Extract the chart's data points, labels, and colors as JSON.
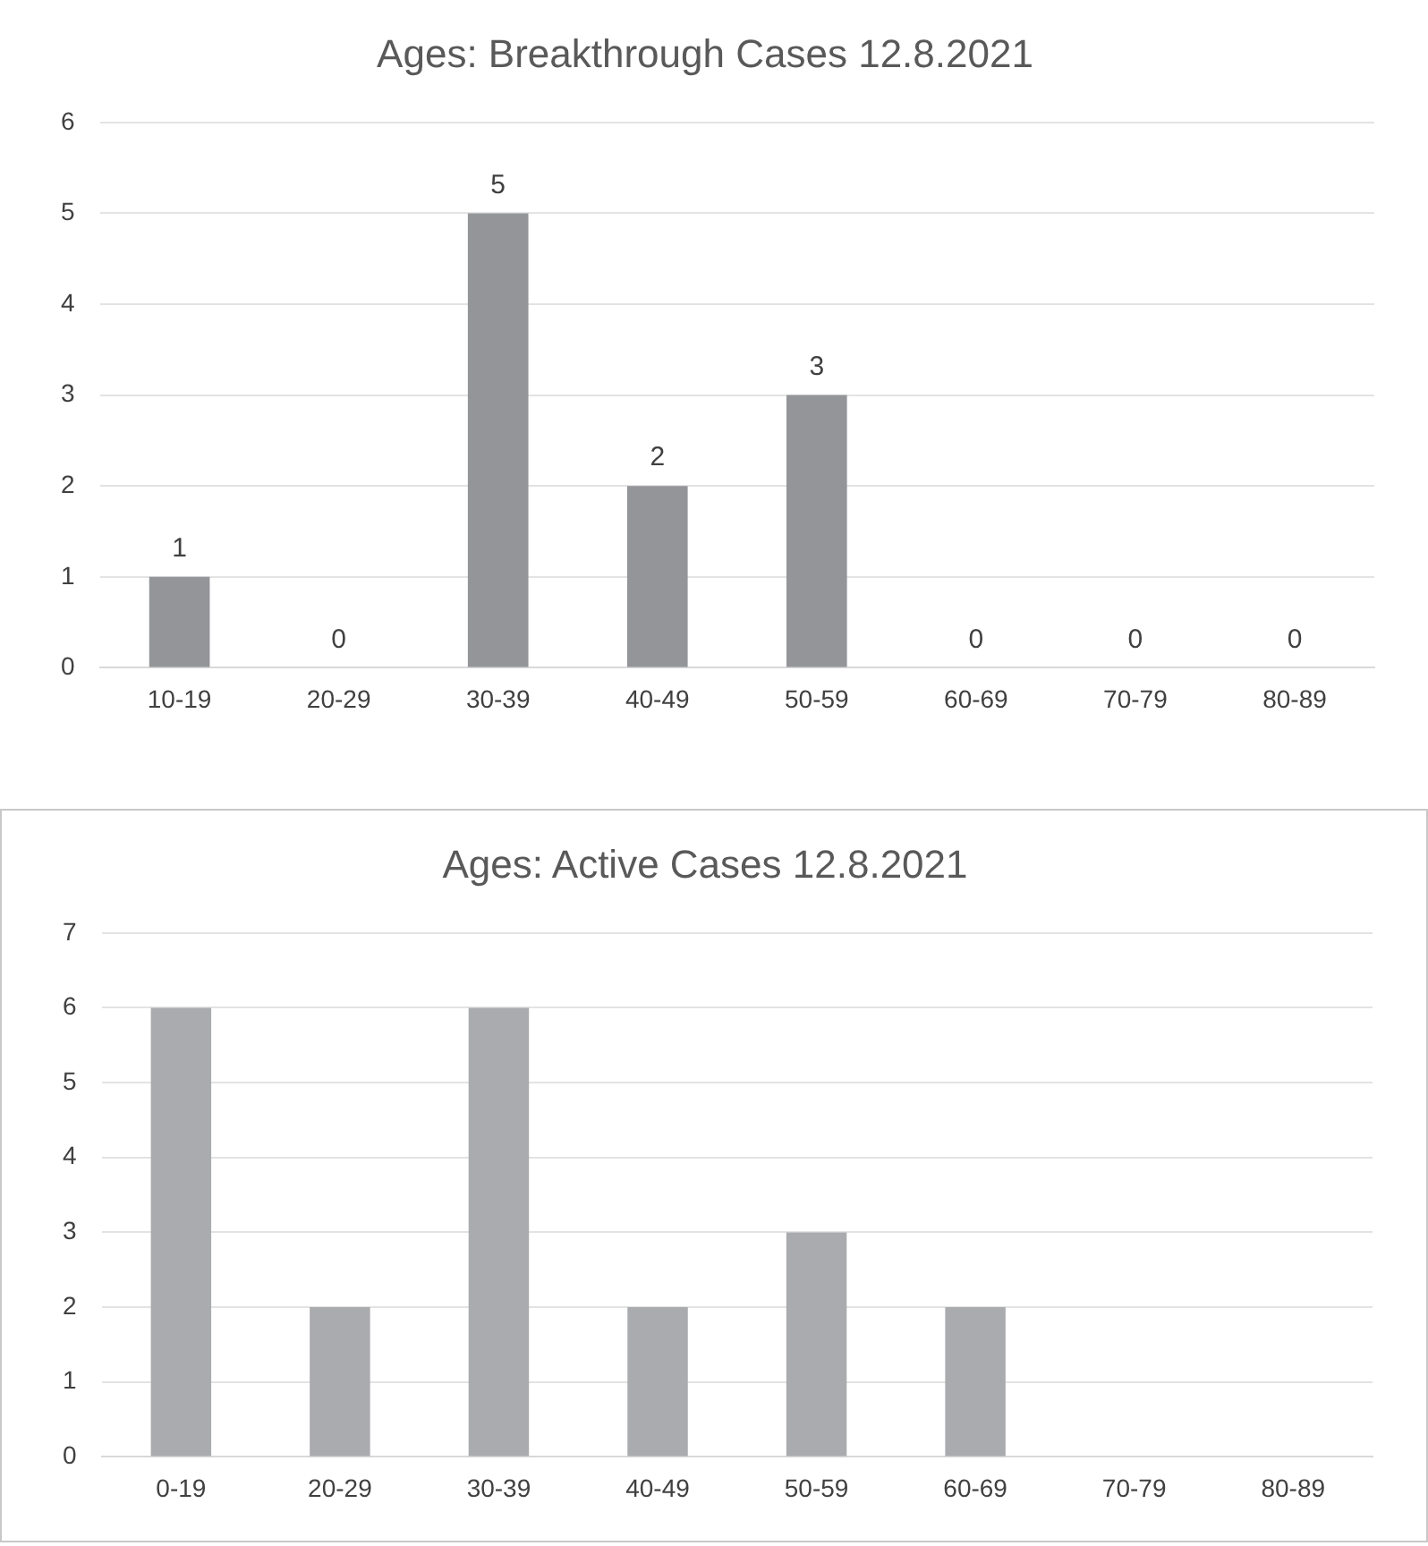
{
  "chart_data": [
    {
      "type": "bar",
      "title": "Ages: Breakthrough Cases 12.8.2021",
      "categories": [
        "10-19",
        "20-29",
        "30-39",
        "40-49",
        "50-59",
        "60-69",
        "70-79",
        "80-89"
      ],
      "values": [
        1,
        0,
        5,
        2,
        3,
        0,
        0,
        0
      ],
      "color": "#939598",
      "ylim": [
        0,
        6
      ],
      "yticks": [
        0,
        1,
        2,
        3,
        4,
        5,
        6
      ],
      "grid": "y",
      "data_labels": true,
      "legend": false
    },
    {
      "type": "bar",
      "title": "Ages: Active Cases 12.8.2021",
      "categories": [
        "0-19",
        "20-29",
        "30-39",
        "40-49",
        "50-59",
        "60-69",
        "70-79",
        "80-89"
      ],
      "values": [
        6,
        2,
        6,
        2,
        3,
        2,
        0,
        0
      ],
      "color": "#aaabae",
      "ylim": [
        0,
        7
      ],
      "yticks": [
        0,
        1,
        2,
        3,
        4,
        5,
        6,
        7
      ],
      "grid": "y",
      "legend": false
    }
  ]
}
